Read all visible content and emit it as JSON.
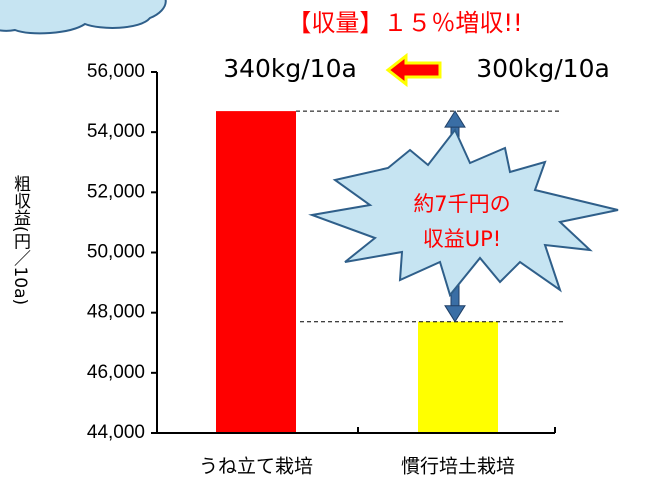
{
  "chart_data": {
    "type": "bar",
    "title": "【収量】１５％増収!!",
    "yield_labels": [
      "340kg/10a",
      "300kg/10a"
    ],
    "callout": [
      "約7千円の",
      "収益UP!"
    ],
    "y_label": "粗収益(円／10a)",
    "categories": [
      "うね立て栽培",
      "慣行培土栽培"
    ],
    "values": [
      54700,
      47700
    ],
    "colors": [
      "#ff0000",
      "#ffff00"
    ],
    "ylim": [
      44000,
      56000
    ],
    "yticks": [
      {
        "value": 44000,
        "label": "44,000"
      },
      {
        "value": 46000,
        "label": "46,000"
      },
      {
        "value": 48000,
        "label": "48,000"
      },
      {
        "value": 50000,
        "label": "50,000"
      },
      {
        "value": 52000,
        "label": "52,000"
      },
      {
        "value": 54000,
        "label": "54,000"
      },
      {
        "value": 56000,
        "label": "56,000"
      }
    ],
    "grid": false
  }
}
